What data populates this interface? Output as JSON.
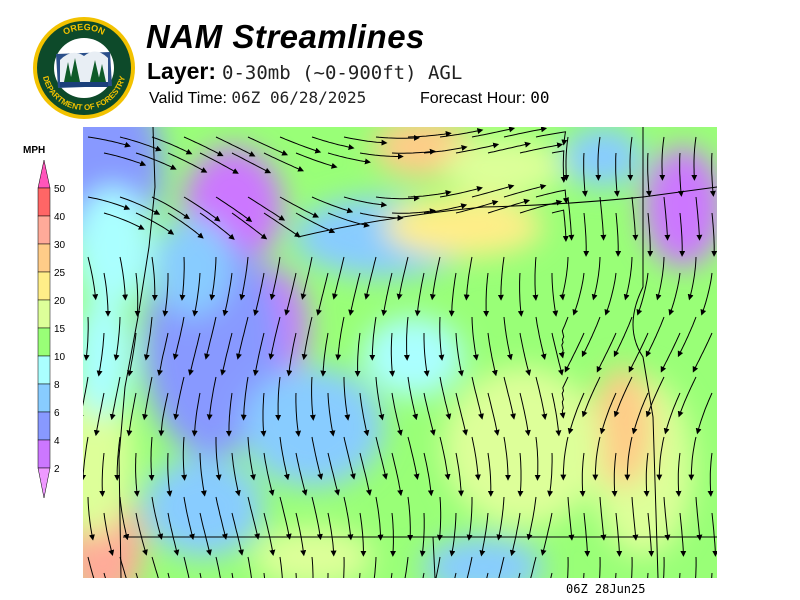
{
  "header": {
    "logo_text": [
      "OREGON",
      "DEPARTMENT OF FORESTRY"
    ],
    "title": "NAM Streamlines",
    "layer_label": "Layer:",
    "layer_value": "0-30mb (~0-900ft) AGL",
    "valid_label": "Valid Time:",
    "valid_value": "06Z 06/28/2025",
    "forecast_label": "Forecast Hour:",
    "forecast_value": "00"
  },
  "legend": {
    "unit": "MPH",
    "ticks": [
      "50",
      "40",
      "30",
      "25",
      "20",
      "15",
      "10",
      "8",
      "6",
      "4",
      "2"
    ],
    "colors": {
      "over": "#ff55bb",
      "40-50": "#ff6666",
      "30-40": "#ffaa99",
      "25-30": "#ffcc88",
      "20-25": "#ffee88",
      "15-20": "#ddff99",
      "10-15": "#99ff77",
      "8-10": "#aaffff",
      "6-8": "#88ccff",
      "4-6": "#8899ff",
      "2-4": "#cc77ff",
      "under": "#ee99ff"
    }
  },
  "map": {
    "type": "wind speed streamlines",
    "region": "Oregon / Pacific Northwest",
    "timestamp": "06Z 28Jun25"
  }
}
